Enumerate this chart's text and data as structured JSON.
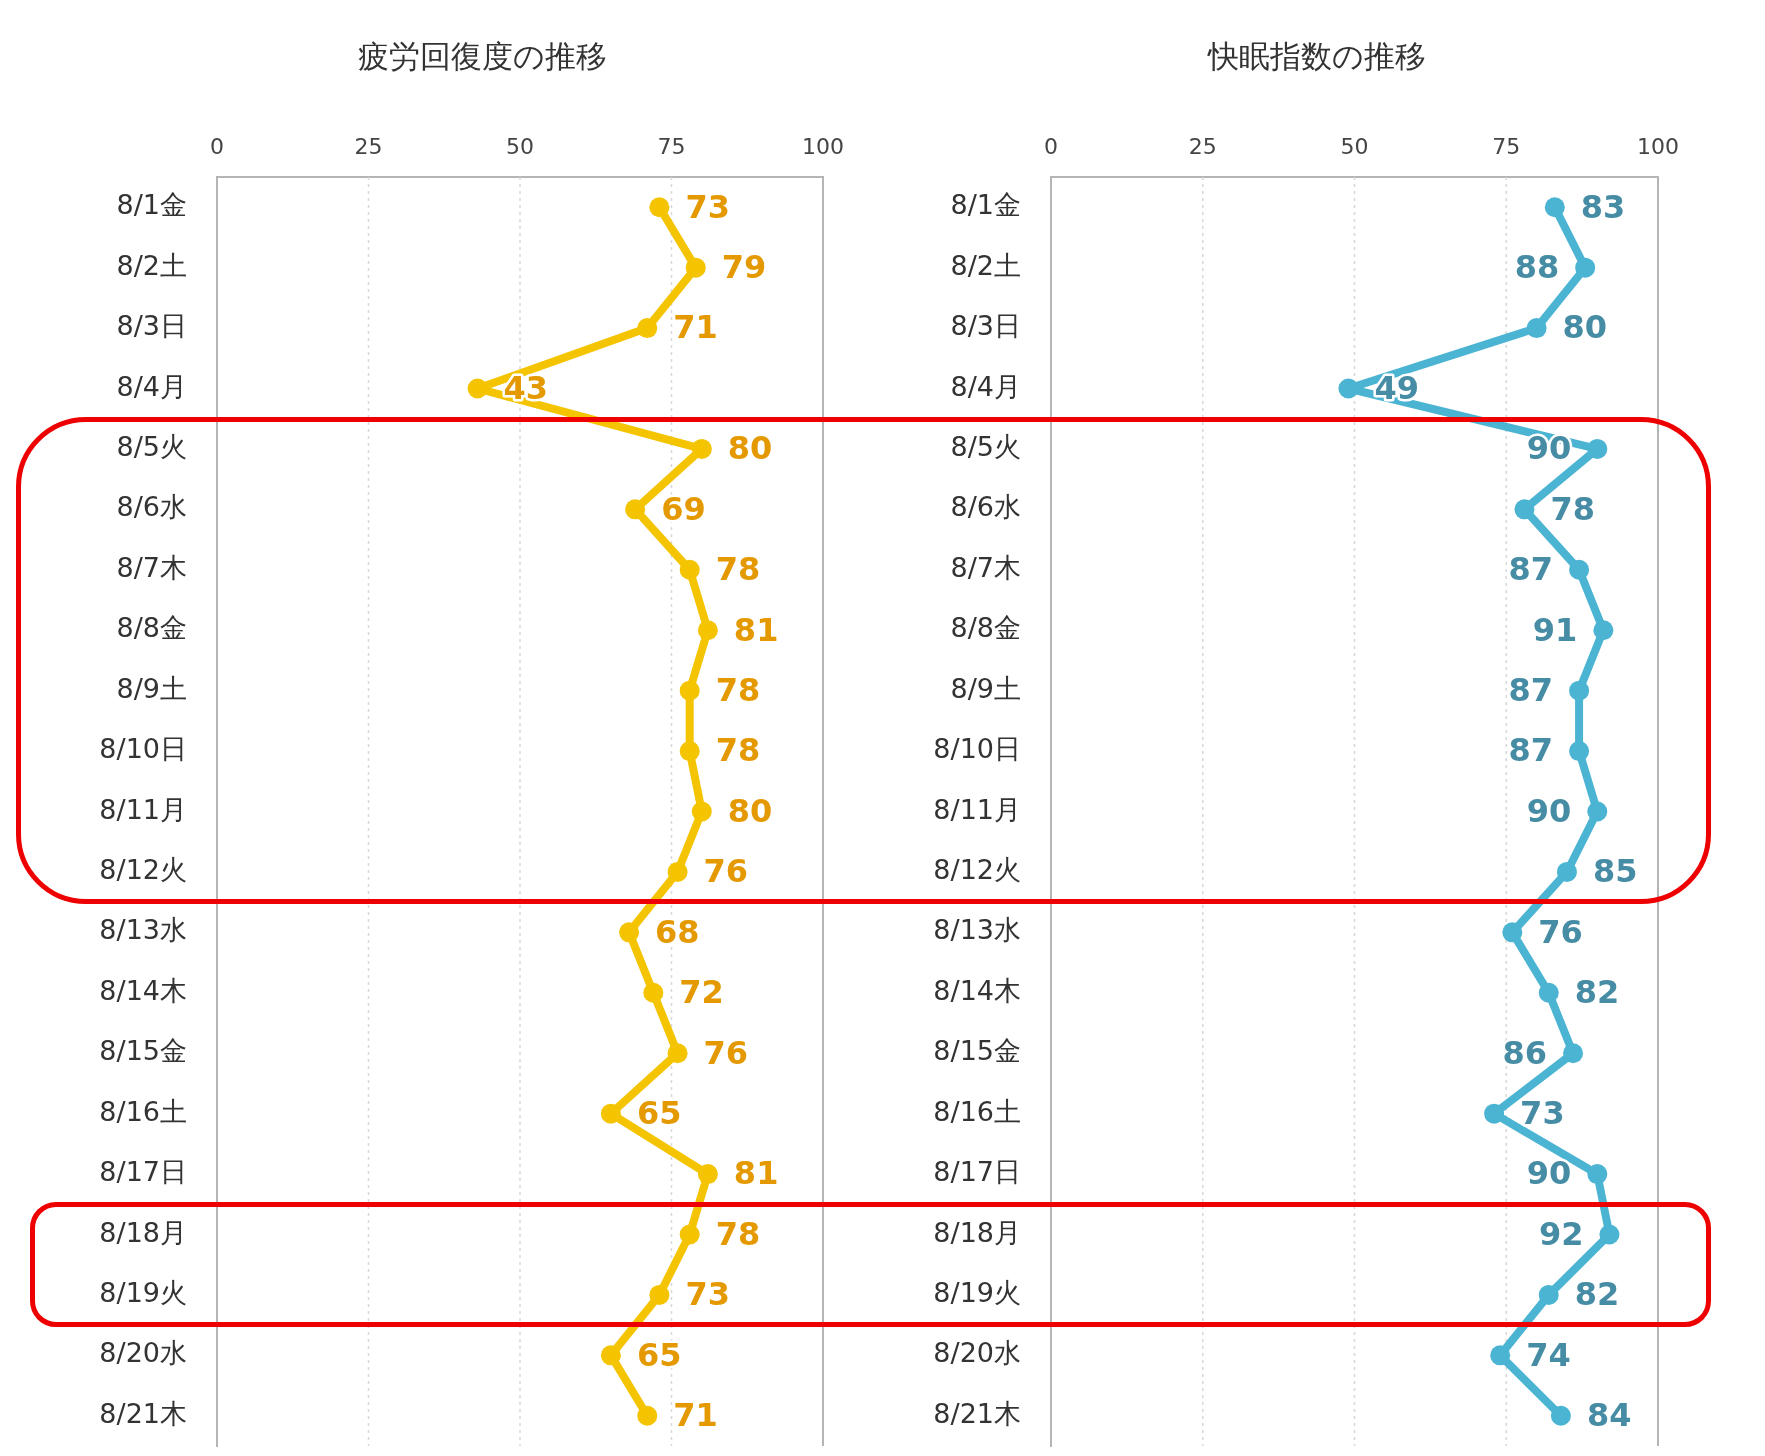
{
  "chart_data": [
    {
      "type": "line",
      "title": "疲労回復度の推移",
      "orientation": "horizontal",
      "categories": [
        "8/1金",
        "8/2土",
        "8/3日",
        "8/4月",
        "8/5火",
        "8/6水",
        "8/7木",
        "8/8金",
        "8/9土",
        "8/10日",
        "8/11月",
        "8/12火",
        "8/13水",
        "8/14木",
        "8/15金",
        "8/16土",
        "8/17日",
        "8/18月",
        "8/19火",
        "8/20水",
        "8/21木"
      ],
      "series": [
        {
          "color": "#f5c400",
          "values": [
            73,
            79,
            71,
            43,
            80,
            69,
            78,
            81,
            78,
            78,
            80,
            76,
            68,
            72,
            76,
            65,
            81,
            78,
            73,
            65,
            71
          ]
        }
      ],
      "xlim": [
        0,
        100
      ],
      "xticks": [
        0,
        25,
        50,
        75,
        100
      ],
      "grid": "x",
      "marker": "circle",
      "data_labels": true
    },
    {
      "type": "line",
      "title": "快眠指数の推移",
      "orientation": "horizontal",
      "categories": [
        "8/1金",
        "8/2土",
        "8/3日",
        "8/4月",
        "8/5火",
        "8/6水",
        "8/7木",
        "8/8金",
        "8/9土",
        "8/10日",
        "8/11月",
        "8/12火",
        "8/13水",
        "8/14木",
        "8/15金",
        "8/16土",
        "8/17日",
        "8/18月",
        "8/19火",
        "8/20水",
        "8/21木"
      ],
      "series": [
        {
          "color": "#4bb4d2",
          "values": [
            83,
            88,
            80,
            49,
            90,
            78,
            87,
            91,
            87,
            87,
            90,
            85,
            76,
            82,
            86,
            73,
            90,
            92,
            82,
            74,
            84
          ]
        }
      ],
      "xlim": [
        0,
        100
      ],
      "xticks": [
        0,
        25,
        50,
        75,
        100
      ],
      "grid": "x",
      "marker": "circle",
      "data_labels": true
    }
  ]
}
